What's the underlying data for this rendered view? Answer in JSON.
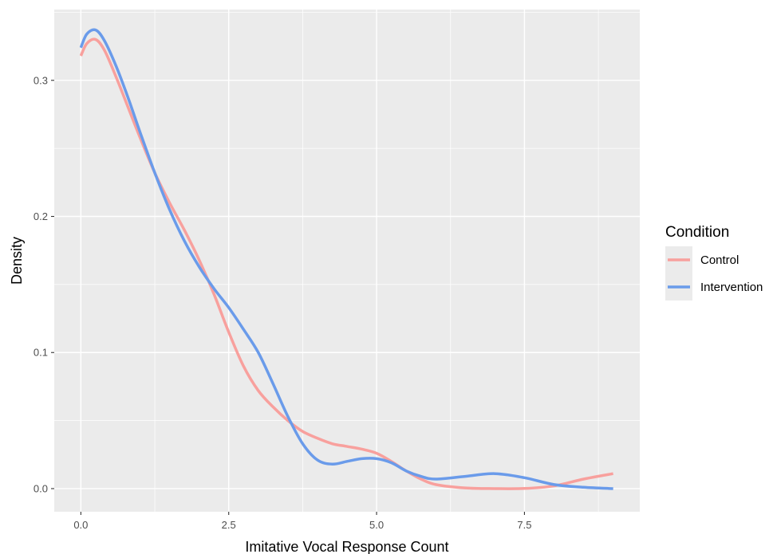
{
  "chart_data": {
    "type": "line",
    "title": "",
    "xlabel": "Imitative Vocal Response Count",
    "ylabel": "Density",
    "xlim": [
      -0.45,
      9.45
    ],
    "ylim": [
      -0.017,
      0.352
    ],
    "x_ticks": [
      0,
      2.5,
      5,
      7.5
    ],
    "x_tick_labels": [
      "0.0",
      "2.5",
      "5.0",
      "7.5"
    ],
    "y_ticks": [
      0,
      0.1,
      0.2,
      0.3
    ],
    "y_tick_labels": [
      "0.0",
      "0.1",
      "0.2",
      "0.3"
    ],
    "grid": true,
    "legend": {
      "title": "Condition",
      "position": "right"
    },
    "colors": {
      "panel": "#ebebeb",
      "grid": "#ffffff"
    },
    "series": [
      {
        "name": "Control",
        "color": "#f8a09d",
        "x": [
          0,
          0.1,
          0.25,
          0.4,
          0.6,
          0.8,
          1.0,
          1.25,
          1.5,
          1.75,
          2.0,
          2.25,
          2.5,
          2.75,
          3.0,
          3.25,
          3.5,
          3.75,
          4.0,
          4.25,
          4.5,
          4.75,
          5.0,
          5.25,
          5.5,
          5.75,
          6.0,
          6.5,
          7.0,
          7.5,
          8.0,
          8.5,
          9.0
        ],
        "y": [
          0.318,
          0.327,
          0.33,
          0.322,
          0.302,
          0.28,
          0.258,
          0.232,
          0.21,
          0.19,
          0.168,
          0.143,
          0.115,
          0.09,
          0.072,
          0.06,
          0.05,
          0.042,
          0.037,
          0.033,
          0.031,
          0.029,
          0.026,
          0.02,
          0.013,
          0.007,
          0.003,
          0.0005,
          0.0,
          0.0001,
          0.002,
          0.007,
          0.011
        ]
      },
      {
        "name": "Intervention",
        "color": "#6a9bea",
        "x": [
          0,
          0.1,
          0.25,
          0.4,
          0.6,
          0.8,
          1.0,
          1.25,
          1.5,
          1.75,
          2.0,
          2.25,
          2.5,
          2.75,
          3.0,
          3.25,
          3.5,
          3.75,
          4.0,
          4.25,
          4.5,
          4.75,
          5.0,
          5.25,
          5.5,
          5.75,
          6.0,
          6.5,
          7.0,
          7.5,
          8.0,
          8.5,
          9.0
        ],
        "y": [
          0.324,
          0.334,
          0.337,
          0.329,
          0.31,
          0.287,
          0.262,
          0.232,
          0.205,
          0.182,
          0.163,
          0.147,
          0.133,
          0.117,
          0.1,
          0.077,
          0.053,
          0.033,
          0.021,
          0.018,
          0.02,
          0.022,
          0.022,
          0.019,
          0.013,
          0.009,
          0.007,
          0.009,
          0.011,
          0.008,
          0.003,
          0.001,
          0.0
        ]
      }
    ]
  }
}
